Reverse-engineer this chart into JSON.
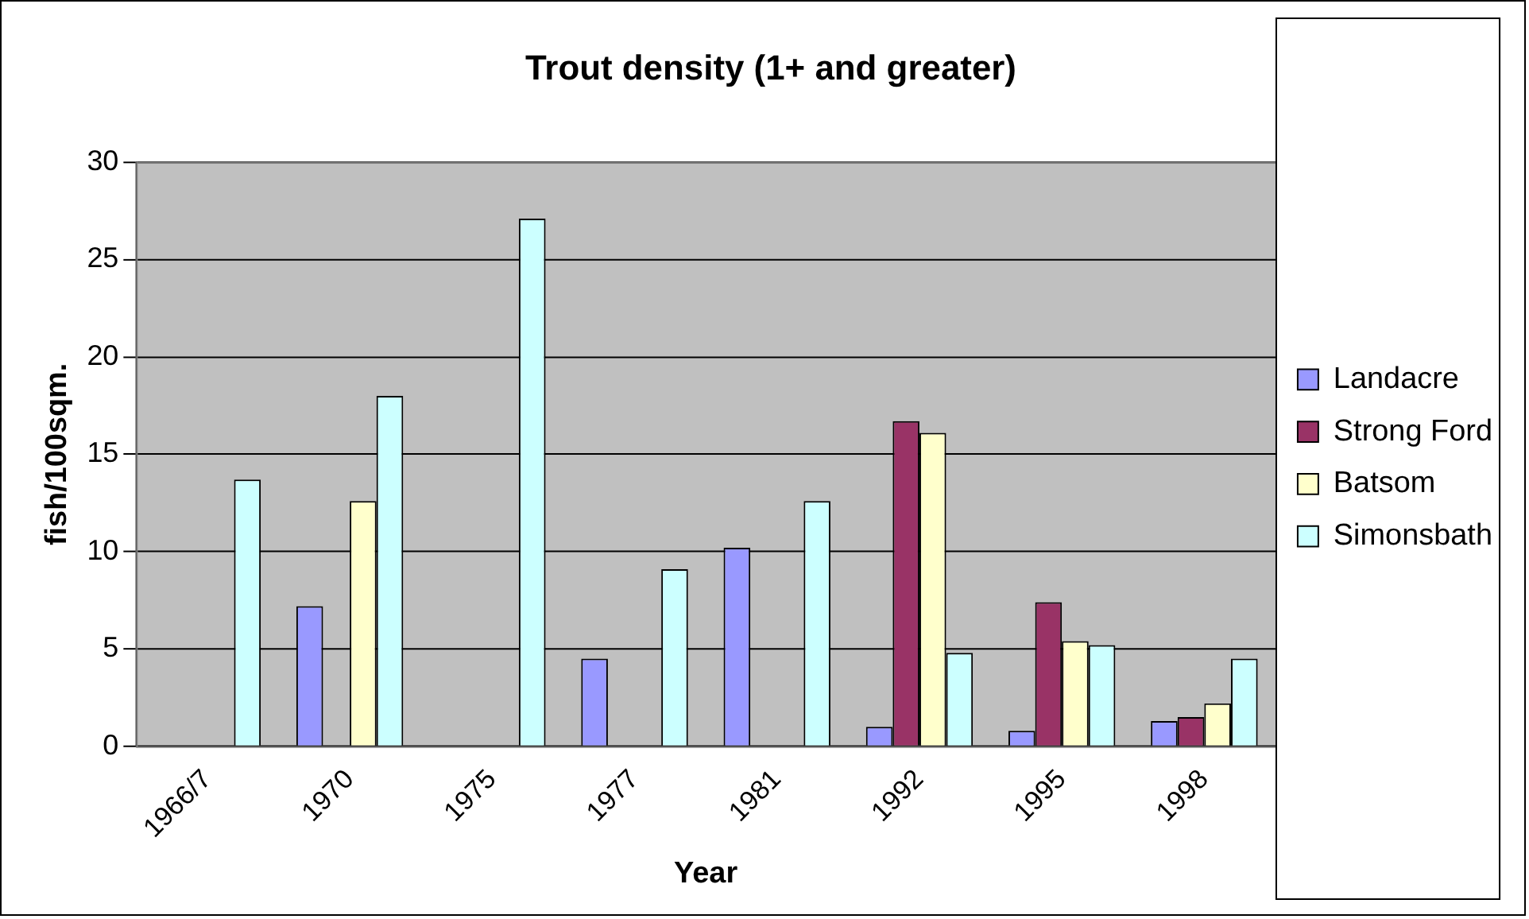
{
  "chart_data": {
    "type": "bar",
    "title": "Trout density (1+ and greater)",
    "xlabel": "Year",
    "ylabel": "fish/100sqm.",
    "categories": [
      "1966/7",
      "1970",
      "1975",
      "1977",
      "1981",
      "1992",
      "1995",
      "1998"
    ],
    "series": [
      {
        "name": "Landacre",
        "color": "#9999ff",
        "values": [
          null,
          7.2,
          null,
          4.5,
          10.2,
          1.0,
          0.8,
          1.3
        ]
      },
      {
        "name": "Strong Ford",
        "color": "#993366",
        "values": [
          null,
          null,
          null,
          null,
          null,
          16.7,
          7.4,
          1.5
        ]
      },
      {
        "name": "Batsom",
        "color": "#ffffcc",
        "values": [
          null,
          12.6,
          null,
          null,
          null,
          16.1,
          5.4,
          2.2
        ]
      },
      {
        "name": "Simonsbath",
        "color": "#ccffff",
        "values": [
          13.7,
          18.0,
          27.1,
          9.1,
          12.6,
          4.8,
          5.2,
          4.5
        ]
      }
    ],
    "ylim": [
      0,
      30
    ],
    "yticks": [
      0,
      5,
      10,
      15,
      20,
      25,
      30
    ],
    "grid": "y",
    "legend": "right"
  }
}
